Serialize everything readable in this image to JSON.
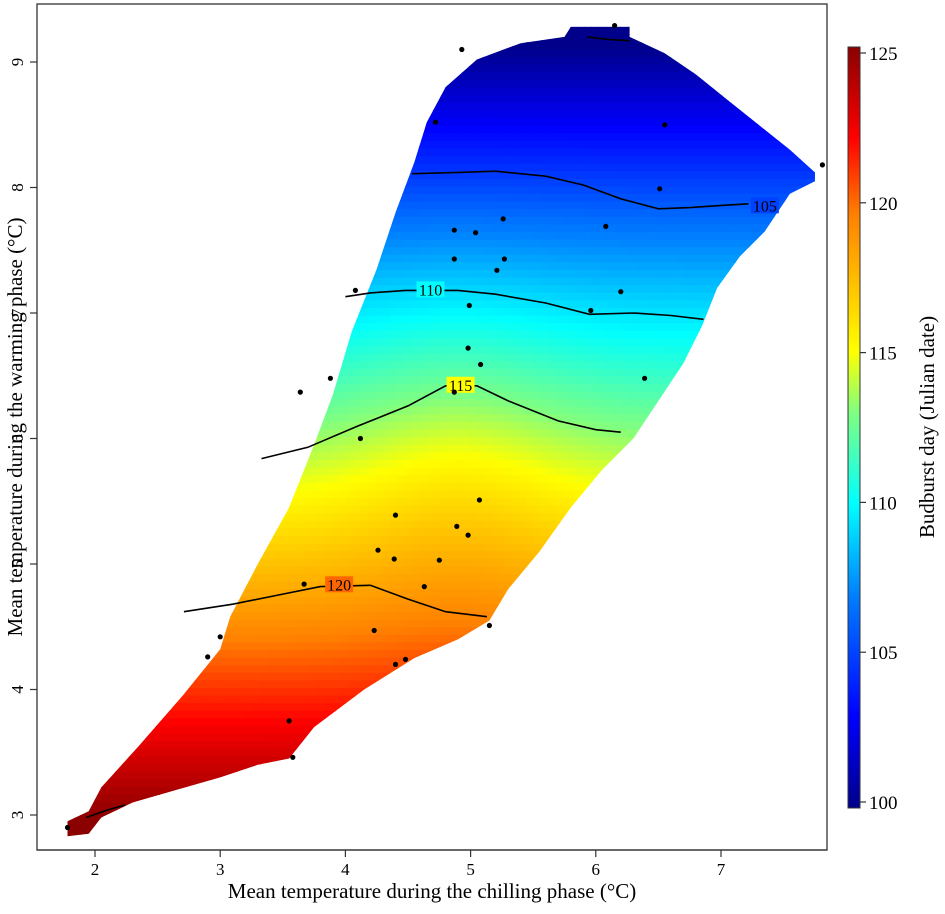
{
  "chart_data": {
    "type": "heatmap",
    "title": "",
    "xlabel": "Mean temperature during the chilling phase (°C)",
    "ylabel": "Mean temperature during the warming phase (°C)",
    "colorbar_label": "Budburst day (Julian date)",
    "xlim": [
      1.75,
      7.85
    ],
    "ylim": [
      2.7,
      9.45
    ],
    "x_ticks": [
      2,
      3,
      4,
      5,
      6,
      7
    ],
    "y_ticks": [
      3,
      4,
      5,
      6,
      7,
      8,
      9
    ],
    "colorbar_ticks": [
      100,
      105,
      110,
      115,
      120,
      125
    ],
    "colorbar_range": [
      100,
      125
    ],
    "colormap": [
      "#00008b",
      "#0000ff",
      "#0080ff",
      "#00ffff",
      "#80ff80",
      "#ffff00",
      "#ff8000",
      "#ff0000",
      "#8b0000"
    ],
    "grid": false,
    "legend_position": "right",
    "points": [
      {
        "x": 6.15,
        "y": 9.29
      },
      {
        "x": 4.93,
        "y": 9.1
      },
      {
        "x": 4.72,
        "y": 8.52
      },
      {
        "x": 6.55,
        "y": 8.5
      },
      {
        "x": 6.51,
        "y": 7.99
      },
      {
        "x": 7.81,
        "y": 8.18
      },
      {
        "x": 5.26,
        "y": 7.75
      },
      {
        "x": 4.87,
        "y": 7.66
      },
      {
        "x": 5.04,
        "y": 7.64
      },
      {
        "x": 6.08,
        "y": 7.69
      },
      {
        "x": 4.87,
        "y": 7.43
      },
      {
        "x": 5.27,
        "y": 7.43
      },
      {
        "x": 5.21,
        "y": 7.34
      },
      {
        "x": 4.08,
        "y": 7.18
      },
      {
        "x": 6.2,
        "y": 7.17
      },
      {
        "x": 5.96,
        "y": 7.02
      },
      {
        "x": 4.99,
        "y": 7.06
      },
      {
        "x": 4.98,
        "y": 6.72
      },
      {
        "x": 5.08,
        "y": 6.59
      },
      {
        "x": 3.88,
        "y": 6.48
      },
      {
        "x": 3.64,
        "y": 6.37
      },
      {
        "x": 6.39,
        "y": 6.48
      },
      {
        "x": 4.87,
        "y": 6.37
      },
      {
        "x": 4.12,
        "y": 6.0
      },
      {
        "x": 5.07,
        "y": 5.51
      },
      {
        "x": 4.4,
        "y": 5.39
      },
      {
        "x": 4.89,
        "y": 5.3
      },
      {
        "x": 4.98,
        "y": 5.23
      },
      {
        "x": 4.26,
        "y": 5.11
      },
      {
        "x": 4.39,
        "y": 5.04
      },
      {
        "x": 4.75,
        "y": 5.03
      },
      {
        "x": 4.63,
        "y": 4.82
      },
      {
        "x": 3.67,
        "y": 4.84
      },
      {
        "x": 5.15,
        "y": 4.51
      },
      {
        "x": 4.23,
        "y": 4.47
      },
      {
        "x": 3.0,
        "y": 4.42
      },
      {
        "x": 2.9,
        "y": 4.26
      },
      {
        "x": 4.48,
        "y": 4.24
      },
      {
        "x": 4.4,
        "y": 4.2
      },
      {
        "x": 3.55,
        "y": 3.75
      },
      {
        "x": 3.58,
        "y": 3.46
      },
      {
        "x": 1.78,
        "y": 2.9
      }
    ],
    "contours": [
      {
        "level": 105,
        "label": "105",
        "label_at": {
          "x": 7.35,
          "y": 7.85
        },
        "path": [
          [
            4.53,
            8.11
          ],
          [
            4.9,
            8.12
          ],
          [
            5.2,
            8.13
          ],
          [
            5.6,
            8.09
          ],
          [
            5.9,
            8.02
          ],
          [
            6.2,
            7.91
          ],
          [
            6.5,
            7.83
          ],
          [
            6.75,
            7.84
          ],
          [
            7.05,
            7.86
          ],
          [
            7.22,
            7.87
          ]
        ]
      },
      {
        "level": 105,
        "label": "",
        "path": [
          [
            5.93,
            9.2
          ],
          [
            6.1,
            9.18
          ],
          [
            6.27,
            9.17
          ]
        ]
      },
      {
        "level": 110,
        "label": "110",
        "label_at": {
          "x": 4.68,
          "y": 7.18
        },
        "path": [
          [
            4.0,
            7.13
          ],
          [
            4.2,
            7.16
          ],
          [
            4.48,
            7.18
          ],
          [
            4.54,
            7.18
          ],
          [
            4.9,
            7.18
          ],
          [
            5.2,
            7.15
          ],
          [
            5.6,
            7.08
          ],
          [
            5.95,
            6.99
          ],
          [
            6.3,
            7.0
          ],
          [
            6.6,
            6.98
          ],
          [
            6.86,
            6.95
          ]
        ]
      },
      {
        "level": 115,
        "label": "115",
        "label_at": {
          "x": 4.92,
          "y": 6.42
        },
        "path": [
          [
            3.33,
            5.84
          ],
          [
            3.7,
            5.93
          ],
          [
            4.1,
            6.1
          ],
          [
            4.5,
            6.26
          ],
          [
            4.8,
            6.42
          ],
          [
            5.05,
            6.42
          ],
          [
            5.3,
            6.3
          ],
          [
            5.7,
            6.14
          ],
          [
            6.0,
            6.07
          ],
          [
            6.2,
            6.05
          ]
        ]
      },
      {
        "level": 120,
        "label": "120",
        "label_at": {
          "x": 3.95,
          "y": 4.83
        },
        "path": [
          [
            2.71,
            4.62
          ],
          [
            3.1,
            4.68
          ],
          [
            3.5,
            4.76
          ],
          [
            3.8,
            4.82
          ],
          [
            4.2,
            4.83
          ],
          [
            4.5,
            4.72
          ],
          [
            4.8,
            4.62
          ],
          [
            5.13,
            4.58
          ]
        ]
      },
      {
        "level": 125,
        "label": "",
        "path": [
          [
            1.93,
            2.98
          ],
          [
            2.1,
            3.04
          ],
          [
            2.24,
            3.08
          ]
        ]
      }
    ],
    "surface": {
      "description": "Predicted budburst day over a staircase-shaped convex region; values decrease (earlier budburst) as warming-phase temperature rises",
      "hull": [
        [
          1.78,
          2.83
        ],
        [
          1.78,
          2.95
        ],
        [
          1.95,
          3.03
        ],
        [
          2.05,
          3.22
        ],
        [
          2.35,
          3.55
        ],
        [
          2.7,
          3.95
        ],
        [
          3.0,
          4.32
        ],
        [
          3.08,
          4.58
        ],
        [
          3.3,
          5.0
        ],
        [
          3.55,
          5.45
        ],
        [
          3.75,
          5.95
        ],
        [
          3.9,
          6.35
        ],
        [
          4.05,
          6.85
        ],
        [
          4.25,
          7.35
        ],
        [
          4.4,
          7.8
        ],
        [
          4.55,
          8.2
        ],
        [
          4.65,
          8.52
        ],
        [
          4.8,
          8.8
        ],
        [
          5.05,
          9.02
        ],
        [
          5.4,
          9.15
        ],
        [
          5.75,
          9.2
        ],
        [
          5.8,
          9.28
        ],
        [
          6.27,
          9.28
        ],
        [
          6.27,
          9.2
        ],
        [
          6.55,
          9.07
        ],
        [
          6.8,
          8.9
        ],
        [
          7.05,
          8.7
        ],
        [
          7.3,
          8.5
        ],
        [
          7.55,
          8.3
        ],
        [
          7.75,
          8.12
        ],
        [
          7.75,
          8.05
        ],
        [
          7.55,
          7.95
        ],
        [
          7.45,
          7.8
        ],
        [
          7.35,
          7.65
        ],
        [
          7.15,
          7.45
        ],
        [
          6.97,
          7.2
        ],
        [
          6.85,
          6.9
        ],
        [
          6.7,
          6.6
        ],
        [
          6.5,
          6.3
        ],
        [
          6.3,
          6.0
        ],
        [
          6.05,
          5.75
        ],
        [
          5.8,
          5.45
        ],
        [
          5.55,
          5.1
        ],
        [
          5.3,
          4.8
        ],
        [
          5.15,
          4.55
        ],
        [
          4.9,
          4.4
        ],
        [
          4.55,
          4.25
        ],
        [
          4.15,
          4.0
        ],
        [
          3.75,
          3.7
        ],
        [
          3.55,
          3.45
        ],
        [
          3.3,
          3.4
        ],
        [
          3.0,
          3.3
        ],
        [
          2.65,
          3.2
        ],
        [
          2.3,
          3.1
        ],
        [
          2.05,
          2.98
        ],
        [
          1.95,
          2.85
        ]
      ]
    }
  }
}
